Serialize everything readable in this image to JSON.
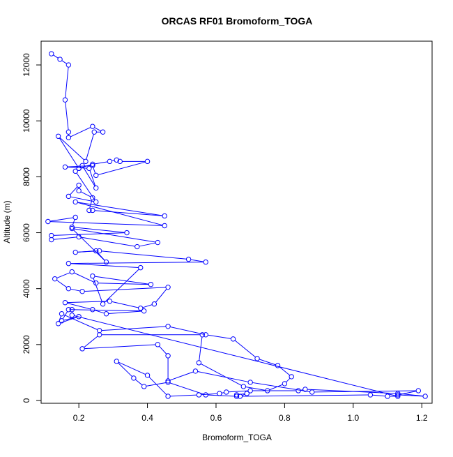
{
  "chart_data": {
    "type": "line",
    "title": "ORCAS RF01 Bromoform_TOGA",
    "xlabel": "Bromoform_TOGA",
    "ylabel": "Altitude (m)",
    "xlim": [
      0.09,
      1.23
    ],
    "ylim": [
      -100,
      12850
    ],
    "xticks": [
      "0.2",
      "0.4",
      "0.6",
      "0.8",
      "1.0",
      "1.2"
    ],
    "xtick_values": [
      0.2,
      0.4,
      0.6,
      0.8,
      1.0,
      1.2
    ],
    "yticks": [
      "0",
      "2000",
      "4000",
      "6000",
      "8000",
      "10000",
      "12000"
    ],
    "ytick_values": [
      0,
      2000,
      4000,
      6000,
      8000,
      10000,
      12000
    ],
    "color": "#0000ff",
    "marker": "open-circle",
    "series": [
      {
        "x": [
          0.12,
          0.145,
          0.17,
          0.16,
          0.17,
          0.17,
          0.24,
          0.27,
          0.245,
          0.22,
          0.14,
          0.2,
          0.24,
          0.29,
          0.31,
          0.32,
          0.4,
          0.25,
          0.24,
          0.16,
          0.23,
          0.25,
          0.21,
          0.2,
          0.19,
          0.25,
          0.17,
          0.2,
          0.2,
          0.24,
          0.23,
          0.24,
          0.45,
          0.19,
          0.45,
          0.11,
          0.19,
          0.18,
          0.34,
          0.12,
          0.12,
          0.2,
          0.37,
          0.43,
          0.18,
          0.28,
          0.25,
          0.19,
          0.26,
          0.52,
          0.57,
          0.17,
          0.38,
          0.27,
          0.24,
          0.41,
          0.25,
          0.18,
          0.13,
          0.17,
          0.21,
          0.46,
          0.42,
          0.38,
          0.29,
          0.16,
          0.24,
          0.28,
          0.39,
          0.17,
          0.15,
          0.2,
          0.14,
          0.15,
          0.26,
          0.46,
          0.57,
          0.65,
          0.72,
          0.78,
          0.82,
          0.8,
          0.75,
          0.68,
          0.55,
          0.56,
          0.26,
          0.21,
          0.43,
          0.46,
          0.46,
          0.54,
          0.7,
          0.88,
          1.19,
          1.13,
          1.21,
          1.13,
          0.86,
          0.84,
          0.7,
          0.63,
          0.61,
          0.55,
          0.46,
          0.4,
          0.31,
          0.36,
          0.39,
          0.46,
          0.57,
          0.66,
          0.66,
          0.69,
          0.67,
          1.05,
          1.1,
          1.13,
          0.18,
          0.18
        ]
      }
    ],
    "yseries": [
      [
        12400,
        12200,
        12000,
        10750,
        9600,
        9400,
        9800,
        9600,
        9600,
        8550,
        9450,
        8300,
        8450,
        8550,
        8600,
        8550,
        8550,
        8050,
        8400,
        8350,
        8300,
        7600,
        8400,
        8300,
        8200,
        7100,
        7300,
        7700,
        7500,
        7250,
        6800,
        6800,
        6600,
        7100,
        6250,
        6400,
        6550,
        6200,
        6000,
        5900,
        5750,
        5850,
        5500,
        5650,
        6150,
        4950,
        5350,
        5300,
        5350,
        5050,
        4950,
        4900,
        4750,
        3450,
        4450,
        4150,
        4200,
        4600,
        4350,
        4000,
        3900,
        4050,
        3450,
        3300,
        3550,
        3500,
        3250,
        3100,
        3200,
        3250,
        2850,
        3000,
        2750,
        3100,
        2500,
        2650,
        2350,
        2200,
        1500,
        1250,
        850,
        600,
        350,
        500,
        1350,
        2350,
        2350,
        1850,
        2000,
        1600,
        700,
        1050,
        650,
        300,
        350,
        200,
        150,
        250,
        400,
        350,
        350,
        300,
        250,
        200,
        150,
        900,
        1400,
        800,
        500,
        650,
        200,
        150,
        200,
        250,
        150,
        200,
        150,
        150,
        3050,
        3250
      ]
    ]
  }
}
